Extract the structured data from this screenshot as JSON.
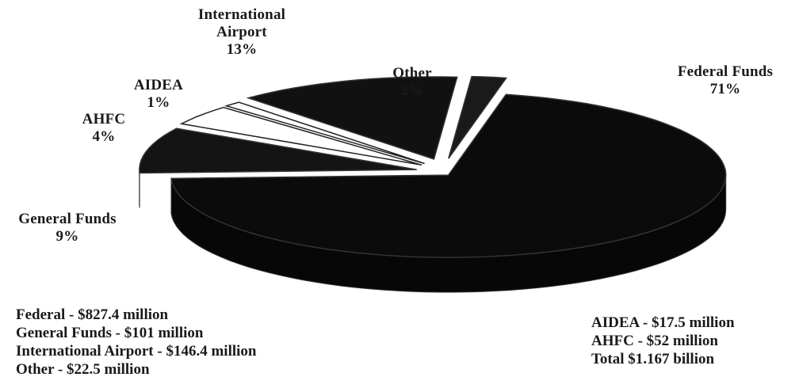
{
  "chart_data": {
    "type": "pie",
    "style": "3d-exploded",
    "slices": [
      {
        "name": "Federal Funds",
        "label_lines": [
          "Federal Funds",
          "71%"
        ],
        "percent": 71,
        "color": "#0b0b0b"
      },
      {
        "name": "General Funds",
        "label_lines": [
          "General Funds",
          "9%"
        ],
        "percent": 9,
        "color": "#141414"
      },
      {
        "name": "AHFC",
        "label_lines": [
          "AHFC",
          "4%"
        ],
        "percent": 4,
        "color": "#ffffff"
      },
      {
        "name": "AIDEA",
        "label_lines": [
          "AIDEA",
          "1%"
        ],
        "percent": 1,
        "color": "#ffffff"
      },
      {
        "name": "International Airport",
        "label_lines": [
          "International",
          "Airport",
          "13%"
        ],
        "percent": 13,
        "color": "#111111"
      },
      {
        "name": "Other",
        "label_lines": [
          "Other",
          "2%"
        ],
        "percent": 2,
        "color": "#1a1a1a"
      }
    ],
    "notes_left": [
      "Federal - $827.4 million",
      "General Funds - $101 million",
      "International Airport - $146.4 million",
      "Other - $22.5 million"
    ],
    "notes_right": [
      "AIDEA - $17.5 million",
      "AHFC - $52 million",
      "Total $1.167 billion"
    ]
  }
}
